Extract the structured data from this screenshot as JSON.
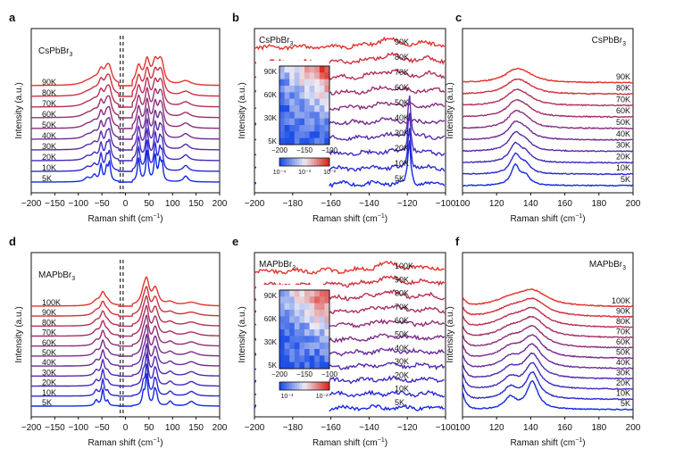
{
  "figure": {
    "description_panels": [
      "a",
      "b",
      "c",
      "d",
      "e",
      "f"
    ]
  },
  "chart_data": [
    {
      "panel": "a",
      "type": "line",
      "sample": "CsPbBr",
      "sample_sub": "3",
      "xlabel": "Raman shift (cm",
      "xlabel_sup": "−1",
      "xlabel_end": ")",
      "ylabel": "Intensity (a.u.)",
      "xlim": [
        -200,
        200
      ],
      "xticks": [
        -200,
        -150,
        -100,
        -50,
        0,
        50,
        100,
        150,
        200
      ],
      "temps": [
        "5K",
        "10K",
        "20K",
        "30K",
        "40K",
        "50K",
        "60K",
        "70K",
        "80K",
        "90K"
      ],
      "dashed_lines_x": [
        -11,
        -5
      ],
      "peaks": [
        [
          -81,
          0.35,
          7
        ],
        [
          -66,
          0.55,
          5
        ],
        [
          -52,
          1.4,
          3
        ],
        [
          -40,
          1.1,
          3
        ],
        [
          -34,
          1.5,
          3
        ],
        [
          28,
          2.0,
          3
        ],
        [
          46,
          2.6,
          3
        ],
        [
          63,
          2.2,
          3
        ],
        [
          73,
          1.7,
          3
        ],
        [
          78,
          1.3,
          2.5
        ],
        [
          128,
          0.5,
          6
        ]
      ]
    },
    {
      "panel": "b",
      "type": "line",
      "sample": "CsPbBr",
      "sample_sub": "3",
      "xlabel": "Raman shift (cm",
      "xlabel_sup": "−1",
      "xlabel_end": ")",
      "ylabel": "Intensity (a.u.)",
      "xlim": [
        -200,
        -100
      ],
      "xticks": [
        -200,
        -180,
        -160,
        -140,
        -120,
        -100
      ],
      "temps": [
        "5K",
        "10K",
        "20K",
        "30K",
        "40K",
        "50K",
        "60K",
        "70K",
        "80K",
        "90K"
      ],
      "inset": {
        "type": "heatmap",
        "xticks": [
          "−200",
          "−150",
          "−100"
        ],
        "yticks": [
          "5K",
          "30K",
          "60K",
          "90K"
        ],
        "colorbar_ticks": [
          "10⁻⁴",
          "10⁻³",
          "10⁻²"
        ]
      }
    },
    {
      "panel": "c",
      "type": "line",
      "sample": "CsPbBr",
      "sample_sub": "3",
      "xlabel": "Raman shift (cm",
      "xlabel_sup": "−1",
      "xlabel_end": ")",
      "ylabel": "Intensity (a.u.)",
      "xlim": [
        100,
        200
      ],
      "xticks": [
        100,
        120,
        140,
        160,
        180,
        200
      ],
      "temps": [
        "5K",
        "10K",
        "20K",
        "30K",
        "40K",
        "50K",
        "60K",
        "70K",
        "80K",
        "90K"
      ],
      "peaks": [
        [
          131,
          1.0,
          3
        ],
        [
          137,
          0.45,
          3
        ]
      ]
    },
    {
      "panel": "d",
      "type": "line",
      "sample": "MAPbBr",
      "sample_sub": "3",
      "xlabel": "Raman shift (cm",
      "xlabel_sup": "−1",
      "xlabel_end": ")",
      "ylabel": "Intensity (a.u.)",
      "xlim": [
        -200,
        200
      ],
      "xticks": [
        -200,
        -150,
        -100,
        -50,
        0,
        50,
        100,
        150,
        200
      ],
      "temps": [
        "5K",
        "10K",
        "20K",
        "30K",
        "40K",
        "50K",
        "60K",
        "70K",
        "80K",
        "90K",
        "100K"
      ],
      "dashed_lines_x": [
        -11,
        -5
      ],
      "peaks": [
        [
          -62,
          0.5,
          4
        ],
        [
          -48,
          1.4,
          3
        ],
        [
          -38,
          0.4,
          3
        ],
        [
          38,
          1.0,
          3
        ],
        [
          45,
          2.6,
          3
        ],
        [
          62,
          1.2,
          3
        ],
        [
          66,
          0.8,
          3
        ],
        [
          95,
          0.4,
          5
        ],
        [
          140,
          0.4,
          8
        ]
      ]
    },
    {
      "panel": "e",
      "type": "line",
      "sample": "MAPbBr",
      "sample_sub": "3",
      "xlabel": "Raman shift (cm",
      "xlabel_sup": "−1",
      "xlabel_end": ")",
      "ylabel": "Intensity (a.u.)",
      "xlim": [
        -200,
        -100
      ],
      "xticks": [
        -200,
        -180,
        -160,
        -140,
        -120,
        -100
      ],
      "temps": [
        "5K",
        "10K",
        "20K",
        "30K",
        "40K",
        "50K",
        "60K",
        "70K",
        "80K",
        "90K",
        "100K"
      ],
      "inset": {
        "type": "heatmap",
        "xticks": [
          "−200",
          "−150",
          "−100"
        ],
        "yticks": [
          "5K",
          "30K",
          "60K",
          "90K"
        ],
        "colorbar_ticks": [
          "10⁻³",
          "10⁻²"
        ]
      }
    },
    {
      "panel": "f",
      "type": "line",
      "sample": "MAPbBr",
      "sample_sub": "3",
      "xlabel": "Raman shift (cm",
      "xlabel_sup": "−1",
      "xlabel_end": ")",
      "ylabel": "Intensity (a.u.)",
      "xlim": [
        100,
        200
      ],
      "xticks": [
        100,
        120,
        140,
        160,
        180,
        200
      ],
      "temps": [
        "5K",
        "10K",
        "20K",
        "30K",
        "40K",
        "50K",
        "60K",
        "70K",
        "80K",
        "90K",
        "100K"
      ],
      "peaks": [
        [
          128,
          0.6,
          4
        ],
        [
          141,
          1.4,
          4
        ]
      ]
    }
  ],
  "colors": {
    "cold": "#1428e6",
    "hot": "#e4322a",
    "axis": "#111111",
    "dash": "#222222"
  }
}
